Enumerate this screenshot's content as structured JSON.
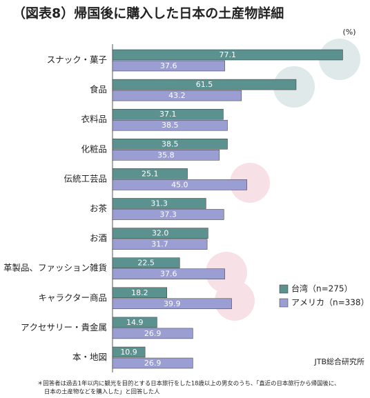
{
  "chart_data": {
    "type": "bar",
    "orientation": "horizontal",
    "title": "（図表8）帰国後に購入した日本の土産物詳細",
    "unit": "(%)",
    "categories": [
      "スナック・菓子",
      "食品",
      "衣料品",
      "化粧品",
      "伝統工芸品",
      "お茶",
      "お酒",
      "革製品、ファッション雑貨",
      "キャラクター商品",
      "アクセサリー・貴金属",
      "本・地図"
    ],
    "series": [
      {
        "name": "台湾（n=275）",
        "color": "#5b918f",
        "values": [
          77.1,
          61.5,
          37.1,
          38.5,
          25.1,
          31.3,
          32.0,
          22.5,
          18.2,
          14.9,
          10.9
        ],
        "value_labels": [
          "77.1",
          "61.5",
          "37.1",
          "38.5",
          "25.1",
          "31.3",
          "32.0",
          "22.5",
          "18.2",
          "14.9",
          "10.9"
        ]
      },
      {
        "name": "アメリカ（n=338）",
        "color": "#9a9ed2",
        "values": [
          37.6,
          43.2,
          38.5,
          35.8,
          45.0,
          37.3,
          31.7,
          37.6,
          39.9,
          26.9,
          26.9
        ],
        "value_labels": [
          "37.6",
          "43.2",
          "38.5",
          "35.8",
          "45.0",
          "37.3",
          "31.7",
          "37.6",
          "39.9",
          "26.9",
          "26.9"
        ]
      }
    ],
    "xlim": [
      0,
      80
    ],
    "legend": "lower-right",
    "source": "JTB総合研究所",
    "footnote": [
      "＊回答者は過去1年以内に観光を目的とする日本旅行をした18歳以上の男女のうち、「直近の日本旅行から帰国後に、",
      "日本の土産物などを購入した」と回答した人"
    ]
  }
}
